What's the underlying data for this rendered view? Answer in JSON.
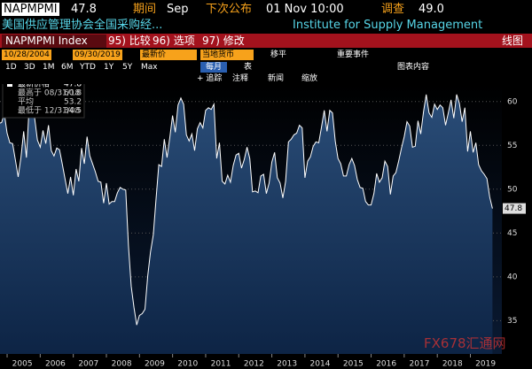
{
  "header": {
    "ticker": "NAPMPMI",
    "value": "47.8",
    "period_label": "期间",
    "period": "Sep",
    "next_label": "下次公布",
    "next": "01 Nov 10:00",
    "survey_label": "调查",
    "survey": "49.0",
    "name_cn": "美国供应管理协会全国采购经...",
    "name_en": "Institute for Supply Management"
  },
  "toolbar": {
    "security": "NAPMPMI Index",
    "actions": [
      "95) 比较",
      "96) 选项",
      "97) 修改"
    ],
    "chart_type": "线图",
    "start": "10/28/2004",
    "end": "09/30/2019",
    "field": "最新价",
    "currency": "当地货币",
    "smoothing": "移平",
    "events": "重要事件",
    "periods": [
      "1D",
      "3D",
      "1M",
      "6M",
      "YTD",
      "1Y",
      "5Y",
      "Max"
    ],
    "frequency": "每月",
    "table": "表",
    "contents": "图表内容",
    "tools": [
      "+ 追踪",
      "注释",
      "新闻",
      "缩放"
    ]
  },
  "watermark": "FX678汇通网",
  "chart_data": {
    "type": "line",
    "series": [
      {
        "name": "最新价格",
        "color": "#ffffff",
        "values": [
          57.5,
          57.6,
          58.6,
          56.4,
          55.3,
          55.2,
          53.3,
          51.4,
          53.6,
          56.6,
          53.6,
          59.4,
          59.1,
          58.1,
          55.6,
          54.8,
          56.7,
          55.2,
          57.3,
          54.4,
          53.8,
          54.7,
          54.5,
          52.9,
          51.2,
          49.5,
          51.4,
          49.3,
          52.3,
          50.9,
          54.7,
          52.9,
          56.0,
          53.8,
          52.9,
          52.0,
          50.9,
          50.8,
          48.4,
          50.7,
          48.3,
          48.6,
          48.6,
          49.6,
          50.2,
          50.0,
          49.9,
          43.5,
          38.9,
          36.5,
          34.5,
          35.6,
          35.8,
          36.3,
          40.1,
          42.8,
          44.8,
          48.9,
          52.8,
          52.6,
          55.7,
          53.6,
          55.9,
          58.4,
          56.5,
          59.6,
          60.4,
          59.7,
          56.2,
          55.5,
          56.3,
          54.4,
          56.9,
          57.6,
          57.0,
          59.0,
          59.3,
          59.1,
          59.7,
          53.5,
          55.3,
          50.9,
          50.6,
          51.6,
          50.8,
          52.7,
          53.9,
          54.1,
          52.4,
          53.4,
          54.8,
          53.5,
          49.7,
          49.8,
          49.6,
          51.5,
          51.7,
          49.5,
          50.7,
          53.1,
          54.2,
          51.3,
          50.7,
          49.0,
          50.9,
          55.4,
          55.7,
          56.2,
          56.4,
          57.3,
          57.0,
          51.3,
          53.2,
          53.7,
          54.9,
          55.4,
          55.3,
          57.1,
          59.0,
          56.6,
          59.0,
          58.7,
          55.5,
          53.5,
          52.9,
          51.5,
          51.5,
          52.8,
          53.5,
          52.7,
          51.1,
          50.2,
          50.1,
          48.6,
          48.2,
          48.2,
          49.5,
          51.8,
          50.8,
          51.3,
          53.2,
          52.6,
          49.4,
          51.5,
          51.9,
          53.2,
          54.7,
          56.0,
          57.7,
          57.2,
          54.8,
          54.9,
          57.8,
          56.3,
          58.8,
          60.8,
          58.7,
          58.2,
          59.7,
          59.1,
          59.6,
          59.3,
          57.3,
          58.7,
          60.2,
          58.1,
          60.8,
          59.8,
          57.7,
          59.3,
          54.3,
          56.6,
          54.2,
          55.3,
          52.8,
          52.1,
          51.7,
          51.2,
          49.1,
          47.8
        ]
      }
    ],
    "last_value": 47.8,
    "stats": [
      {
        "label": "最高于 08/31/18",
        "value": 60.8
      },
      {
        "label": "平均",
        "value": 53.2
      },
      {
        "label": "最低于 12/31/08",
        "value": 34.5
      }
    ],
    "x_labels": [
      "2005",
      "2006",
      "2007",
      "2008",
      "2009",
      "2010",
      "2011",
      "2012",
      "2013",
      "2014",
      "2015",
      "2016",
      "2017",
      "2018",
      "2019"
    ],
    "ylim": [
      31.2,
      62.5
    ],
    "yticks": [
      35,
      40,
      45,
      50,
      55,
      60
    ],
    "grid": true
  }
}
